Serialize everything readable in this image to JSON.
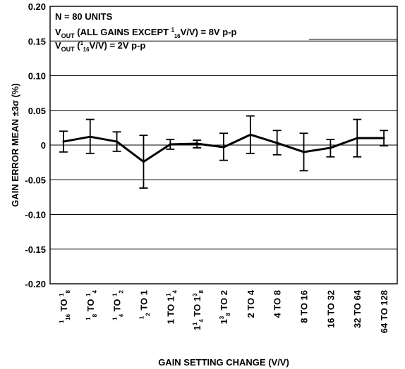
{
  "chart_data": {
    "type": "line",
    "annotation": {
      "line1": "N = 80 UNITS",
      "line2": {
        "v": "V",
        "sub": "OUT",
        "a": " (ALL GAINS EXCEPT ",
        "num": "1",
        "den": "16",
        "b": "V/V) = 8V p-p"
      },
      "line3": {
        "v": "V",
        "sub": "OUT",
        "a": " (",
        "num": "1",
        "den": "16",
        "b": "V/V) = 2V p-p"
      }
    },
    "xlabel": "GAIN SETTING CHANGE (V/V)",
    "ylabel": "GAIN ERROR MEAN ±3σ (%)",
    "ylim": [
      -0.2,
      0.2
    ],
    "yticks": [
      "0.20",
      "0.15",
      "0.10",
      "0.05",
      "0",
      "-0.05",
      "-0.10",
      "-0.15",
      "-0.20"
    ],
    "ytick_values": [
      0.2,
      0.15,
      0.1,
      0.05,
      0,
      -0.05,
      -0.1,
      -0.15,
      -0.2
    ],
    "grid": "horizontal",
    "categories": [
      [
        {
          "sup": "1"
        },
        {
          "sub": "16"
        },
        {
          "t": " TO "
        },
        {
          "sup": "1"
        },
        {
          "sub": "8"
        }
      ],
      [
        {
          "sup": "1"
        },
        {
          "sub": "8"
        },
        {
          "t": " TO "
        },
        {
          "sup": "1"
        },
        {
          "sub": "4"
        }
      ],
      [
        {
          "sup": "1"
        },
        {
          "sub": "4"
        },
        {
          "t": " TO "
        },
        {
          "sup": "1"
        },
        {
          "sub": "2"
        }
      ],
      [
        {
          "sup": "1"
        },
        {
          "sub": "2"
        },
        {
          "t": " TO 1"
        }
      ],
      [
        {
          "t": "1 TO 1"
        },
        {
          "sup": "1"
        },
        {
          "sub": "4"
        }
      ],
      [
        {
          "t": "1"
        },
        {
          "sup": "1"
        },
        {
          "sub": "4"
        },
        {
          "t": " TO 1"
        },
        {
          "sup": "3"
        },
        {
          "sub": "8"
        }
      ],
      [
        {
          "t": "1"
        },
        {
          "sup": "3"
        },
        {
          "sub": "8"
        },
        {
          "t": " TO 2"
        }
      ],
      [
        {
          "t": "2 TO 4"
        }
      ],
      [
        {
          "t": "4 TO 8"
        }
      ],
      [
        {
          "t": "8 TO 16"
        }
      ],
      [
        {
          "t": "16 TO 32"
        }
      ],
      [
        {
          "t": "32 TO 64"
        }
      ],
      [
        {
          "t": "64 TO 128"
        }
      ]
    ],
    "mean": [
      0.005,
      0.012,
      0.005,
      -0.024,
      0.001,
      0.002,
      -0.003,
      0.015,
      0.003,
      -0.01,
      -0.004,
      0.01,
      0.01
    ],
    "upper": [
      0.02,
      0.037,
      0.019,
      0.014,
      0.008,
      0.007,
      0.017,
      0.042,
      0.021,
      0.017,
      0.008,
      0.037,
      0.021
    ],
    "lower": [
      -0.01,
      -0.012,
      -0.009,
      -0.062,
      -0.006,
      -0.004,
      -0.022,
      -0.012,
      -0.014,
      -0.037,
      -0.017,
      -0.017,
      -0.001
    ]
  }
}
